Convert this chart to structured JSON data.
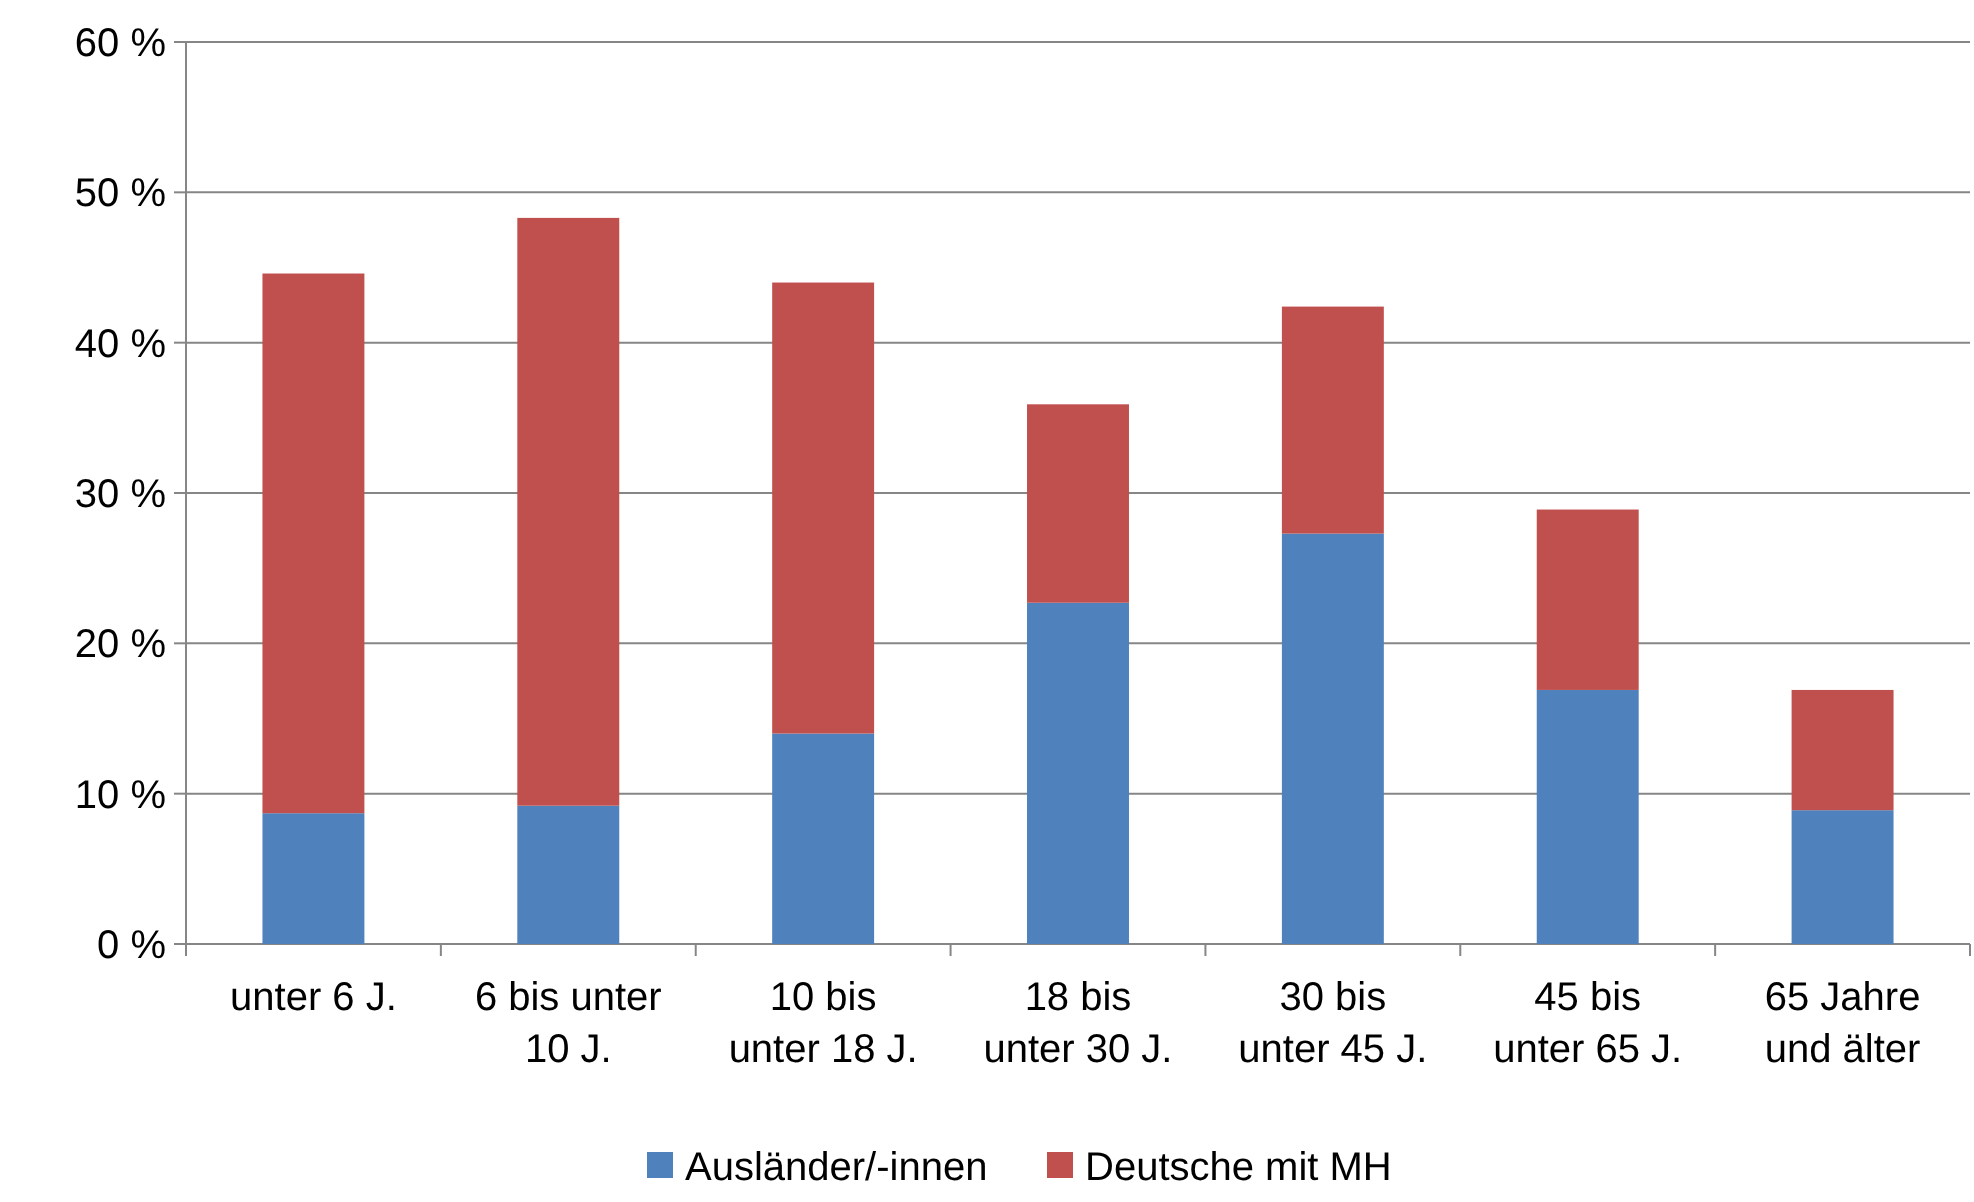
{
  "chart_data": {
    "type": "bar",
    "stacked": true,
    "categories": [
      "unter 6 J.",
      "6 bis unter\n10 J.",
      "10 bis\nunter 18 J.",
      "18 bis\nunter 30 J.",
      "30 bis\nunter 45 J.",
      "45 bis\nunter 65 J.",
      "65 Jahre\nund älter"
    ],
    "series": [
      {
        "name": "Ausländer/-innen",
        "color": "#4f81bd",
        "values": [
          8.7,
          9.2,
          14.0,
          22.7,
          27.3,
          16.9,
          8.9
        ]
      },
      {
        "name": "Deutsche mit MH",
        "color": "#c0504d",
        "values": [
          35.9,
          39.1,
          30.0,
          13.2,
          15.1,
          12.0,
          8.0
        ]
      }
    ],
    "ylim": [
      0,
      60
    ],
    "yticks": [
      {
        "value": 0,
        "label": "0 %"
      },
      {
        "value": 10,
        "label": "10 %"
      },
      {
        "value": 20,
        "label": "20 %"
      },
      {
        "value": 30,
        "label": "30 %"
      },
      {
        "value": 40,
        "label": "40 %"
      },
      {
        "value": 50,
        "label": "50 %"
      },
      {
        "value": 60,
        "label": "60 %"
      }
    ],
    "grid": "y",
    "legend": "bottom"
  }
}
